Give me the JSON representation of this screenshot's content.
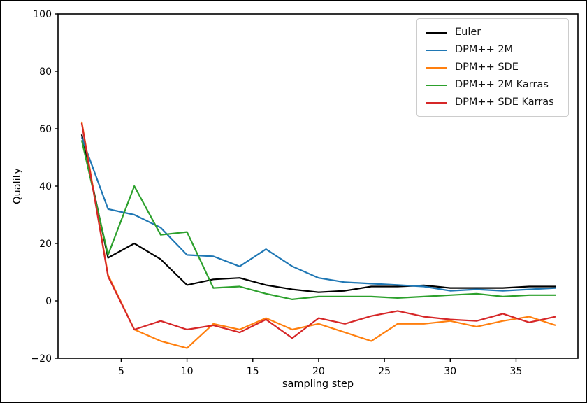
{
  "figure": {
    "background": "#ffffff",
    "border_color": "#000000"
  },
  "chart_data": {
    "type": "line",
    "title": "",
    "xlabel": "sampling step",
    "ylabel": "Quality",
    "xlim": [
      0.2,
      39.7
    ],
    "ylim": [
      -20,
      100
    ],
    "xticks": [
      5,
      10,
      15,
      20,
      25,
      30,
      35
    ],
    "yticks": [
      -20,
      0,
      20,
      40,
      60,
      80,
      100
    ],
    "grid": false,
    "legend_position": "upper right",
    "x": [
      2,
      4,
      6,
      8,
      10,
      12,
      14,
      16,
      18,
      20,
      22,
      24,
      26,
      28,
      30,
      32,
      34,
      36,
      38
    ],
    "series": [
      {
        "name": "Euler",
        "color": "#000000",
        "values": [
          58,
          15,
          20,
          14.5,
          5.5,
          7.5,
          8,
          5.5,
          4,
          3,
          3.5,
          5,
          5,
          5.4,
          4.5,
          4.5,
          4.5,
          5,
          5
        ]
      },
      {
        "name": "DPM++ 2M",
        "color": "#1f77b4",
        "values": [
          57,
          32,
          30,
          25.5,
          16,
          15.5,
          12,
          18,
          12,
          8,
          6.5,
          6,
          5.5,
          5,
          3.5,
          4,
          3.5,
          4,
          4.5
        ]
      },
      {
        "name": "DPM++ SDE",
        "color": "#ff7f0e",
        "values": [
          62.5,
          9,
          -10,
          -14,
          -16.5,
          -8,
          -10,
          -6,
          -10,
          -8,
          -11,
          -14,
          -8,
          -8,
          -7,
          -9,
          -7,
          -5.5,
          -8.5
        ]
      },
      {
        "name": "DPM++ 2M Karras",
        "color": "#2ca02c",
        "values": [
          56,
          16,
          40,
          23,
          24,
          4.5,
          5,
          2.5,
          0.5,
          1.5,
          1.5,
          1.5,
          1,
          1.5,
          2,
          2.5,
          1.5,
          2,
          2
        ]
      },
      {
        "name": "DPM++ SDE Karras",
        "color": "#d62728",
        "values": [
          62,
          8.5,
          -10,
          -7,
          -10,
          -8.5,
          -11,
          -6.5,
          -13,
          -6,
          -8,
          -5.3,
          -3.5,
          -5.5,
          -6.5,
          -7,
          -4.5,
          -7.5,
          -5.5
        ]
      }
    ]
  }
}
